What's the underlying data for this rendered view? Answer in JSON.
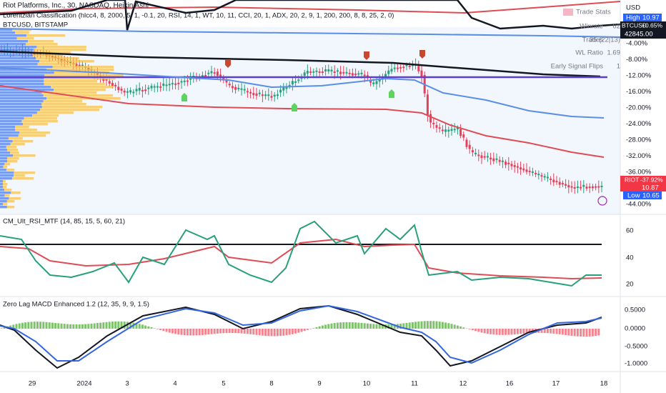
{
  "header": {
    "title": "Riot Platforms, Inc., 30, NASDAQ, Heikin Ashi",
    "indicator": "Lorentzian Classification (hlcc4, 8, 2000, 5, 1, -0.1, 20, RSI, 14, 1, WT, 10, 11, CCI, 20, 1, ADX, 20, 2, 9, 1, 200, 200, 8, 8, 25, 2, 0)",
    "compare": "BTCUSD, BITSTAMP"
  },
  "trade_stats": {
    "title": "Trade Stats",
    "rows": [
      [
        "Winrate",
        "62"
      ],
      [
        "Trades",
        "35 (22|13)"
      ],
      [
        "WL Ratio",
        "1.69"
      ],
      [
        "Early Signal Flips",
        "1"
      ]
    ]
  },
  "price_axis": {
    "currency": "USD",
    "high_label": "High",
    "high_value": "10.97",
    "btc_symbol": "BTCUSD",
    "btc_change": "+0.65%",
    "btc_price": "42845.00",
    "ticks": [
      "-4.00%",
      "-8.00%",
      "-12.00%",
      "-16.00%",
      "-20.00%",
      "-24.00%",
      "-28.00%",
      "-32.00%",
      "-36.00%",
      "-44.00%"
    ],
    "riot_symbol": "RIOT",
    "riot_change": "-37.92%",
    "riot_price": "10.87",
    "low_label": "Low",
    "low_value": "10.65"
  },
  "rsi_pane": {
    "title": "CM_Ult_RSI_MTF (14, 85, 15, 5, 60, 21)",
    "ticks": [
      "60",
      "40",
      "20"
    ]
  },
  "macd_pane": {
    "title": "Zero Lag MACD Enhanced 1.2 (12, 35, 9, 9, 1.5)",
    "ticks": [
      "0.5000",
      "0.0000",
      "-0.5000",
      "-1.0000"
    ]
  },
  "time_axis": [
    "29",
    "2024",
    "3",
    "4",
    "5",
    "8",
    "9",
    "10",
    "11",
    "12",
    "16",
    "17",
    "18"
  ]
}
